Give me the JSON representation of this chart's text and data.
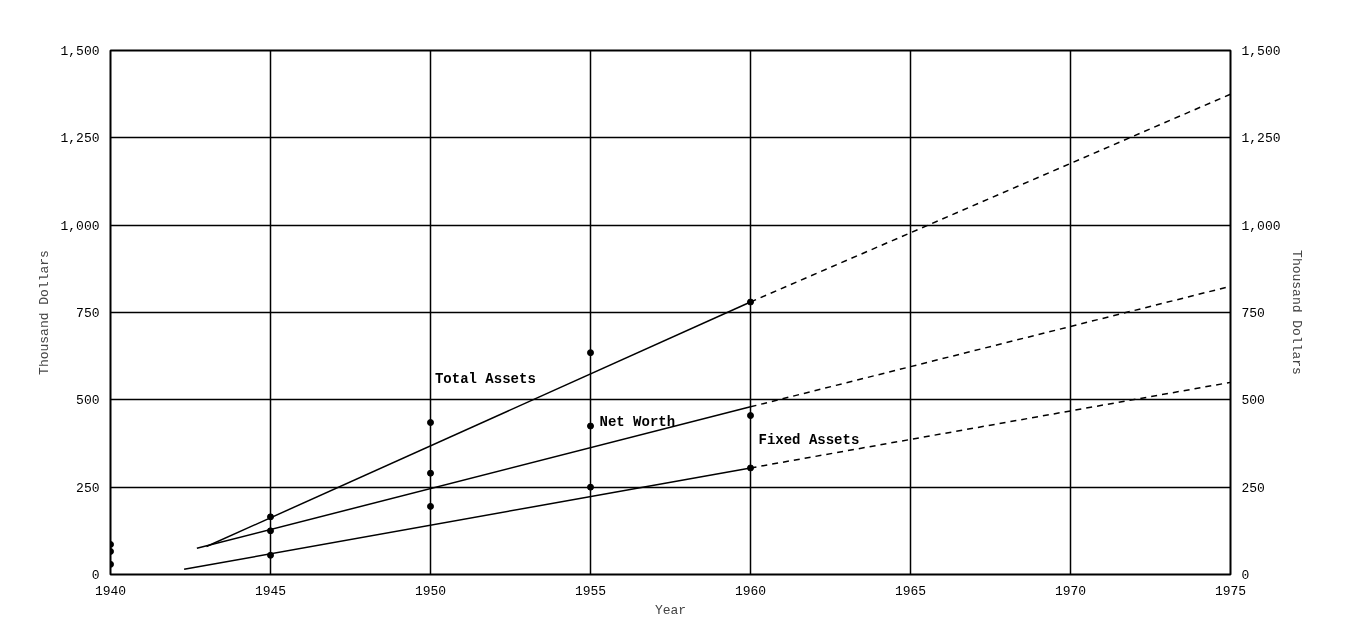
{
  "chart_data": {
    "type": "line",
    "xlabel": "Year",
    "ylabel": "Thousand Dollars",
    "y2label": "Thousand Dollars",
    "xlim": [
      1940,
      1975
    ],
    "xticks": [
      1940,
      1945,
      1950,
      1955,
      1960,
      1965,
      1970,
      1975
    ],
    "ylim": [
      0,
      1500
    ],
    "yticks": [
      0,
      250,
      500,
      750,
      {
        "value": 1000,
        "label": "1,000"
      },
      {
        "value": 1250,
        "label": "1,250"
      },
      {
        "value": 1500,
        "label": "1,500"
      }
    ],
    "y2lim": [
      0,
      1500
    ],
    "y2ticks": [
      0,
      250,
      500,
      750,
      {
        "value": 1000,
        "label": "1,000"
      },
      {
        "value": 1250,
        "label": "1,250"
      },
      {
        "value": 1500,
        "label": "1,500"
      }
    ],
    "grid": true,
    "series": [
      {
        "name": "Total Assets",
        "color": "#000000",
        "line_style": "solid",
        "x": [
          1943,
          1960
        ],
        "values": [
          80,
          780
        ]
      },
      {
        "color": "#000000",
        "line_style": "dashed",
        "x": [
          1960,
          1975
        ],
        "values": [
          780,
          1375
        ]
      },
      {
        "name": "Net Worth",
        "color": "#000000",
        "line_style": "solid",
        "x": [
          1942.7,
          1960
        ],
        "values": [
          75,
          480
        ]
      },
      {
        "color": "#000000",
        "line_style": "dashed",
        "x": [
          1960,
          1975
        ],
        "values": [
          480,
          825
        ]
      },
      {
        "name": "Fixed Assets",
        "color": "#000000",
        "line_style": "solid",
        "x": [
          1942.3,
          1960
        ],
        "values": [
          15,
          305
        ]
      },
      {
        "color": "#000000",
        "line_style": "dashed",
        "x": [
          1960,
          1975
        ],
        "values": [
          305,
          550
        ]
      },
      {
        "type": "scatter",
        "color": "#000000",
        "marker": "circle",
        "x": [
          1940,
          1945,
          1950,
          1955,
          1960
        ],
        "values": [
          86,
          165,
          435,
          635,
          780
        ]
      },
      {
        "type": "scatter",
        "color": "#000000",
        "marker": "circle",
        "x": [
          1940,
          1945,
          1950,
          1955,
          1960
        ],
        "values": [
          66,
          125,
          290,
          425,
          455
        ]
      },
      {
        "type": "scatter",
        "color": "#000000",
        "marker": "circle",
        "x": [
          1940,
          1945,
          1950,
          1955,
          1960
        ],
        "values": [
          29,
          55,
          195,
          250,
          305
        ]
      }
    ]
  }
}
